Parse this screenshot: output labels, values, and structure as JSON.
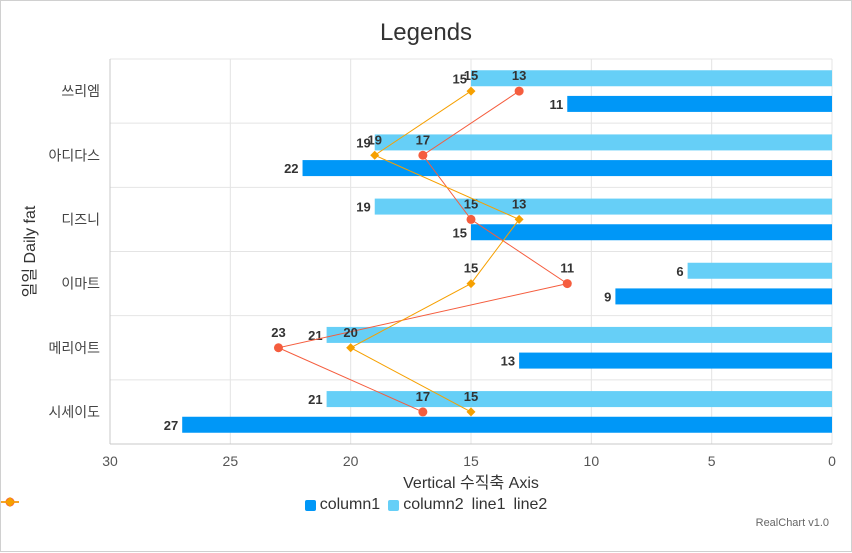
{
  "chart_data": {
    "type": "bar",
    "orientation": "horizontal",
    "title": "Legends",
    "xlabel": "Vertical 수직축 Axis",
    "ylabel": "일일 Daily fat",
    "categories": [
      "쓰리엠",
      "아디다스",
      "디즈니",
      "이마트",
      "메리어트",
      "시세이도"
    ],
    "value_axis": {
      "min": 0,
      "max": 30,
      "reversed": true,
      "ticks": [
        30,
        25,
        20,
        15,
        10,
        5,
        0
      ]
    },
    "grid": true,
    "legend_position": "bottom",
    "series": [
      {
        "name": "column1",
        "type": "bar",
        "color": "#0097f7",
        "values": [
          11,
          22,
          15,
          9,
          13,
          27
        ]
      },
      {
        "name": "column2",
        "type": "bar",
        "color": "#66cff7",
        "values": [
          15,
          19,
          19,
          6,
          21,
          21
        ]
      },
      {
        "name": "line1",
        "type": "line",
        "marker": "circle",
        "color": "#f55d3e",
        "values": [
          13,
          17,
          15,
          11,
          23,
          17
        ]
      },
      {
        "name": "line2",
        "type": "line",
        "marker": "diamond",
        "color": "#f6a000",
        "values": [
          15,
          19,
          13,
          15,
          20,
          15
        ]
      }
    ]
  },
  "credit": "RealChart v1.0"
}
